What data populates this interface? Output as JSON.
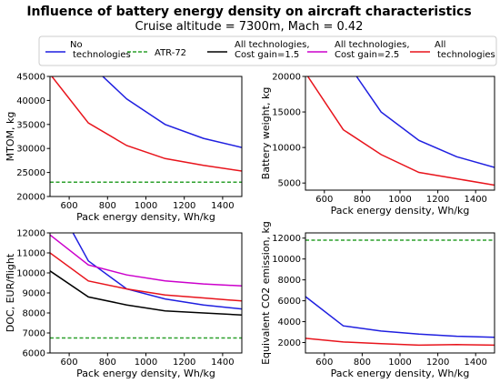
{
  "figure": {
    "title": "Influence of battery energy density on aircraft characteristics",
    "subtitle": "Cruise altitude = 7300m, Mach = 0.42"
  },
  "legend": [
    {
      "label_lines": [
        "No",
        "technologies"
      ],
      "color": "#1f1fe0",
      "dashed": false
    },
    {
      "label_lines": [
        "ATR-72"
      ],
      "color": "#2ca02c",
      "dashed": true
    },
    {
      "label_lines": [
        "All technologies,",
        "Cost gain=1.5"
      ],
      "color": "#000000",
      "dashed": false
    },
    {
      "label_lines": [
        "All technologies,",
        "Cost gain=2.5"
      ],
      "color": "#cc00cc",
      "dashed": false
    },
    {
      "label_lines": [
        "All",
        "technologies"
      ],
      "color": "#e8141c",
      "dashed": false
    }
  ],
  "chart_data": [
    {
      "type": "line",
      "xlabel": "Pack energy density, Wh/kg",
      "ylabel": "MTOM, kg",
      "xlim": [
        500,
        1500
      ],
      "ylim": [
        20000,
        45000
      ],
      "xticks": [
        600,
        800,
        1000,
        1200,
        1400
      ],
      "yticks": [
        20000,
        25000,
        30000,
        35000,
        40000,
        45000
      ],
      "series": [
        {
          "name": "No technologies",
          "color": "#1f1fe0",
          "x": [
            775,
            900,
            1100,
            1300,
            1500
          ],
          "y": [
            45000,
            40300,
            35000,
            32100,
            30200
          ]
        },
        {
          "name": "All technologies",
          "color": "#e8141c",
          "x": [
            500,
            700,
            900,
            1100,
            1300,
            1500
          ],
          "y": [
            45500,
            35300,
            30600,
            27900,
            26500,
            25300
          ]
        },
        {
          "name": "ATR-72",
          "color": "#2ca02c",
          "dashed": true,
          "x": [
            500,
            1500
          ],
          "y": [
            23000,
            23000
          ]
        }
      ]
    },
    {
      "type": "line",
      "xlabel": "Pack energy density, Wh/kg",
      "ylabel": "Battery weight, kg",
      "xlim": [
        500,
        1500
      ],
      "ylim": [
        4000,
        20000
      ],
      "xticks": [
        600,
        800,
        1000,
        1200,
        1400
      ],
      "yticks": [
        5000,
        10000,
        15000,
        20000
      ],
      "series": [
        {
          "name": "No technologies",
          "color": "#1f1fe0",
          "x": [
            770,
            900,
            1100,
            1300,
            1500
          ],
          "y": [
            20000,
            15000,
            11000,
            8700,
            7200
          ]
        },
        {
          "name": "All technologies",
          "color": "#e8141c",
          "x": [
            500,
            700,
            900,
            1100,
            1300,
            1500
          ],
          "y": [
            20500,
            12500,
            9000,
            6500,
            5600,
            4700
          ]
        }
      ]
    },
    {
      "type": "line",
      "xlabel": "Pack energy density, Wh/kg",
      "ylabel": "DOC, EUR/flight",
      "xlim": [
        500,
        1500
      ],
      "ylim": [
        6000,
        12000
      ],
      "xticks": [
        600,
        800,
        1000,
        1200,
        1400
      ],
      "yticks": [
        6000,
        7000,
        8000,
        9000,
        10000,
        11000,
        12000
      ],
      "series": [
        {
          "name": "No technologies",
          "color": "#1f1fe0",
          "x": [
            620,
            700,
            900,
            1100,
            1300,
            1500
          ],
          "y": [
            12000,
            10600,
            9200,
            8700,
            8400,
            8200
          ]
        },
        {
          "name": "All technologies, Cost gain=2.5",
          "color": "#cc00cc",
          "x": [
            500,
            700,
            900,
            1100,
            1300,
            1500
          ],
          "y": [
            11900,
            10400,
            9900,
            9600,
            9450,
            9350
          ]
        },
        {
          "name": "All technologies",
          "color": "#e8141c",
          "x": [
            500,
            700,
            900,
            1100,
            1300,
            1500
          ],
          "y": [
            11000,
            9600,
            9200,
            8900,
            8750,
            8600
          ]
        },
        {
          "name": "All technologies, Cost gain=1.5",
          "color": "#000000",
          "x": [
            500,
            700,
            900,
            1100,
            1300,
            1500
          ],
          "y": [
            10100,
            8800,
            8400,
            8100,
            8000,
            7900
          ]
        },
        {
          "name": "ATR-72",
          "color": "#2ca02c",
          "dashed": true,
          "x": [
            500,
            1500
          ],
          "y": [
            6750,
            6750
          ]
        }
      ]
    },
    {
      "type": "line",
      "xlabel": "Pack energy density, Wh/kg",
      "ylabel": "Equivalent CO2 emission, kg",
      "xlim": [
        500,
        1500
      ],
      "ylim": [
        1000,
        12500
      ],
      "xticks": [
        600,
        800,
        1000,
        1200,
        1400
      ],
      "yticks": [
        2000,
        4000,
        6000,
        8000,
        10000,
        12000
      ],
      "series": [
        {
          "name": "No technologies",
          "color": "#1f1fe0",
          "x": [
            500,
            700,
            900,
            1100,
            1300,
            1500
          ],
          "y": [
            6400,
            3600,
            3100,
            2800,
            2600,
            2500
          ]
        },
        {
          "name": "All technologies",
          "color": "#e8141c",
          "x": [
            500,
            700,
            900,
            1100,
            1300,
            1500
          ],
          "y": [
            2400,
            2050,
            1900,
            1750,
            1800,
            1750
          ]
        },
        {
          "name": "ATR-72",
          "color": "#2ca02c",
          "dashed": true,
          "x": [
            500,
            1500
          ],
          "y": [
            11800,
            11800
          ]
        }
      ]
    }
  ]
}
